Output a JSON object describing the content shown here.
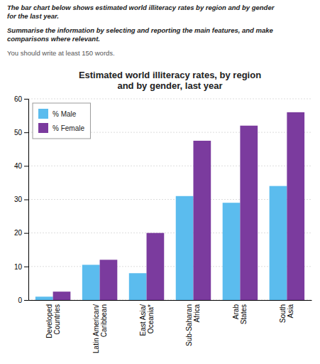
{
  "chart_data": {
    "type": "bar",
    "title": "Estimated world illiteracy rates, by region\nand by gender, last year",
    "annotations": [
      "The bar chart below shows estimated world illiteracy rates by region and by gender\nfor the last year.",
      "Summarise the information by selecting and reporting the main features, and make\ncomparisons where relevant.",
      "You should write at least 150 words."
    ],
    "categories": [
      "Developed\nCountries",
      "Latin American/\nCaribbean",
      "East Asia/\nOceania*",
      "Sub-Saharan\nAfrica",
      "Arab\nStates",
      "South\nAsia"
    ],
    "series": [
      {
        "name": "% Male",
        "color": "#5BBCEE",
        "values": [
          1,
          10.5,
          8,
          31,
          29,
          34
        ]
      },
      {
        "name": "% Female",
        "color": "#7B3B9E",
        "values": [
          2.5,
          12,
          20,
          47.5,
          52,
          56
        ]
      }
    ],
    "ylim": [
      0,
      60
    ],
    "yticks": [
      0,
      10,
      20,
      30,
      40,
      50,
      60
    ],
    "grid": true,
    "legend": "upper left"
  }
}
